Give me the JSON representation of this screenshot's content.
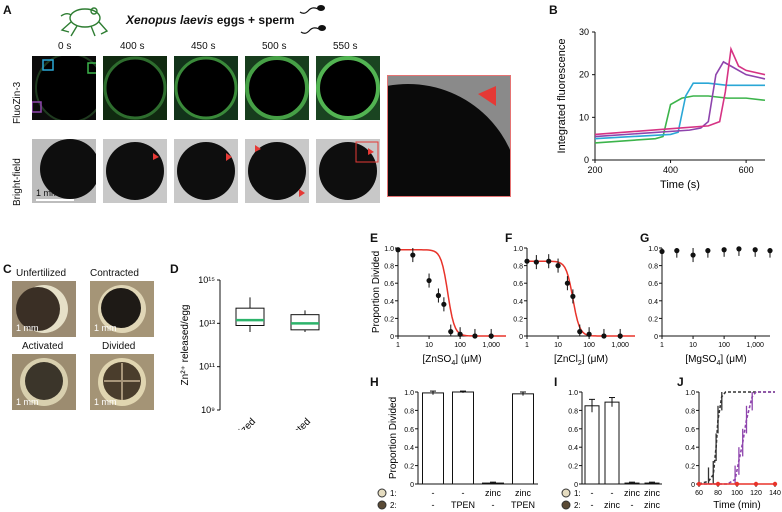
{
  "panels": {
    "a": {
      "letter": "A",
      "header_italic": "Xenopus laevis",
      "header_rest": " eggs + sperm",
      "times": [
        "0 s",
        "400 s",
        "450 s",
        "500 s",
        "550 s"
      ],
      "row_fluo": "FluoZin-3",
      "row_bf": "Bright-field",
      "scale": "1 mm",
      "roi_colors": [
        "#2aa7d6",
        "#3cb44b",
        "#8e44ad",
        "#d63384"
      ]
    },
    "b": {
      "letter": "B"
    },
    "c": {
      "letter": "C",
      "labels": [
        "Unfertilized",
        "Contracted",
        "Activated",
        "Divided"
      ],
      "scale": "1 mm"
    },
    "d": {
      "letter": "D"
    },
    "e": {
      "letter": "E"
    },
    "f": {
      "letter": "F"
    },
    "g": {
      "letter": "G"
    },
    "h": {
      "letter": "H",
      "row1": [
        "-",
        "-",
        "zinc",
        "zinc"
      ],
      "row2": [
        "-",
        "TPEN",
        "-",
        "TPEN"
      ]
    },
    "i": {
      "letter": "I",
      "row1": [
        "-",
        "-",
        "zinc",
        "zinc"
      ],
      "row2": [
        "-",
        "zinc",
        "-",
        "zinc"
      ]
    },
    "j": {
      "letter": "J"
    }
  },
  "chart_data": [
    {
      "id": "B",
      "type": "line",
      "xlabel": "Time (s)",
      "ylabel": "Integrated fluorescence",
      "xlim": [
        200,
        650
      ],
      "ylim": [
        0,
        30
      ],
      "xticks": [
        200,
        400,
        600
      ],
      "yticks": [
        0,
        10,
        20,
        30
      ],
      "series": [
        {
          "color": "#3cb44b",
          "x": [
            200,
            360,
            380,
            400,
            430,
            460,
            500,
            550,
            600,
            650
          ],
          "y": [
            4,
            5,
            5.5,
            13,
            14.5,
            15,
            15,
            14.5,
            14.5,
            14
          ]
        },
        {
          "color": "#2aa7d6",
          "x": [
            200,
            400,
            420,
            440,
            460,
            500,
            550,
            600,
            650
          ],
          "y": [
            5,
            6,
            6.5,
            15,
            18,
            18,
            17.5,
            17.5,
            17.5
          ]
        },
        {
          "color": "#8e44ad",
          "x": [
            200,
            450,
            480,
            500,
            520,
            540,
            560,
            600,
            650
          ],
          "y": [
            5.5,
            7,
            7.5,
            9,
            20,
            23,
            22,
            20,
            19
          ]
        },
        {
          "color": "#d63384",
          "x": [
            200,
            500,
            530,
            545,
            560,
            580,
            600,
            650
          ],
          "y": [
            6,
            8,
            9,
            16,
            26,
            22,
            21,
            20
          ]
        }
      ]
    },
    {
      "id": "D",
      "type": "box",
      "ylabel": "Zn²⁺ released/egg",
      "yscale": "log",
      "yticks": [
        "10⁹",
        "10¹¹",
        "10¹³",
        "10¹⁵"
      ],
      "categories": [
        "Fertilized",
        "Activated"
      ],
      "boxes": [
        {
          "name": "Fertilized",
          "whisker_low_exp": 12.6,
          "q1_exp": 12.9,
          "median_exp": 13.15,
          "q3_exp": 13.7,
          "whisker_high_exp": 14.2
        },
        {
          "name": "Activated",
          "whisker_low_exp": 12.6,
          "q1_exp": 12.7,
          "median_exp": 13.0,
          "q3_exp": 13.4,
          "whisker_high_exp": 13.6
        }
      ]
    },
    {
      "id": "E",
      "type": "scatter",
      "ylabel": "Proportion Divided",
      "xlabel_main": "[ZnSO",
      "xlabel_sub": "4",
      "xlabel_end": "] (μM)",
      "xscale": "log",
      "xticks": [
        "1",
        "10",
        "100",
        "1,000"
      ],
      "yticks": [
        "0",
        "0.2",
        "0.4",
        "0.6",
        "0.8",
        "1.0"
      ],
      "points": [
        {
          "x": 1,
          "y": 0.98
        },
        {
          "x": 3,
          "y": 0.92
        },
        {
          "x": 10,
          "y": 0.63
        },
        {
          "x": 20,
          "y": 0.46
        },
        {
          "x": 30,
          "y": 0.36
        },
        {
          "x": 50,
          "y": 0.05
        },
        {
          "x": 100,
          "y": 0.02
        },
        {
          "x": 300,
          "y": 0.0
        },
        {
          "x": 1000,
          "y": 0.0
        }
      ],
      "fit_color": "#e8332a",
      "ic50": 40
    },
    {
      "id": "F",
      "type": "scatter",
      "xlabel_main": "[ZnCl",
      "xlabel_sub": "2",
      "xlabel_end": "] (μM)",
      "xscale": "log",
      "xticks": [
        "1",
        "10",
        "100",
        "1,000"
      ],
      "yticks": [
        "0",
        "0.2",
        "0.4",
        "0.6",
        "0.8",
        "1.0"
      ],
      "points": [
        {
          "x": 1,
          "y": 0.85
        },
        {
          "x": 2,
          "y": 0.84
        },
        {
          "x": 5,
          "y": 0.85
        },
        {
          "x": 10,
          "y": 0.8
        },
        {
          "x": 20,
          "y": 0.6
        },
        {
          "x": 30,
          "y": 0.45
        },
        {
          "x": 50,
          "y": 0.05
        },
        {
          "x": 100,
          "y": 0.02
        },
        {
          "x": 300,
          "y": 0.0
        },
        {
          "x": 1000,
          "y": 0.0
        }
      ],
      "fit_color": "#e8332a",
      "ic50": 30
    },
    {
      "id": "G",
      "type": "scatter",
      "xlabel_main": "[MgSO",
      "xlabel_sub": "4",
      "xlabel_end": "] (μM)",
      "xscale": "log",
      "xticks": [
        "1",
        "10",
        "100",
        "1,000"
      ],
      "yticks": [
        "0",
        "0.2",
        "0.4",
        "0.6",
        "0.8",
        "1.0"
      ],
      "points": [
        {
          "x": 1,
          "y": 0.96
        },
        {
          "x": 3,
          "y": 0.97
        },
        {
          "x": 10,
          "y": 0.92
        },
        {
          "x": 30,
          "y": 0.97
        },
        {
          "x": 100,
          "y": 0.98
        },
        {
          "x": 300,
          "y": 0.99
        },
        {
          "x": 1000,
          "y": 0.98
        },
        {
          "x": 3000,
          "y": 0.97
        }
      ]
    },
    {
      "id": "H",
      "type": "bar",
      "ylabel": "Proportion Divided",
      "yticks": [
        "0",
        "0.2",
        "0.4",
        "0.6",
        "0.8",
        "1.0"
      ],
      "values": [
        0.99,
        1.0,
        0.01,
        0.98
      ],
      "errors": [
        0.02,
        0.01,
        0.01,
        0.02
      ]
    },
    {
      "id": "I",
      "type": "bar",
      "yticks": [
        "0",
        "0.2",
        "0.4",
        "0.6",
        "0.8",
        "1.0"
      ],
      "values": [
        0.85,
        0.89,
        0.01,
        0.01
      ],
      "errors": [
        0.07,
        0.05,
        0.01,
        0.01
      ]
    },
    {
      "id": "J",
      "type": "line",
      "xlabel": "Time (min)",
      "xticks": [
        "60",
        "80",
        "100",
        "120",
        "140"
      ],
      "yticks": [
        "0",
        "0.2",
        "0.4",
        "0.6",
        "0.8",
        "1.0"
      ],
      "xlim": [
        60,
        140
      ],
      "series": [
        {
          "color": "#333333",
          "dash": true,
          "x": [
            60,
            70,
            75,
            78,
            80,
            84,
            88,
            100,
            140
          ],
          "y": [
            0,
            0.03,
            0.1,
            0.4,
            0.7,
            0.95,
            1,
            1,
            1
          ]
        },
        {
          "color": "#8e44ad",
          "dash": true,
          "x": [
            60,
            90,
            98,
            102,
            106,
            110,
            116,
            120,
            140
          ],
          "y": [
            0,
            0,
            0.05,
            0.25,
            0.45,
            0.7,
            0.95,
            1,
            1
          ]
        },
        {
          "color": "#e8332a",
          "dash": false,
          "x": [
            60,
            80,
            100,
            120,
            140
          ],
          "y": [
            0,
            0,
            0,
            0,
            0
          ]
        }
      ]
    }
  ]
}
